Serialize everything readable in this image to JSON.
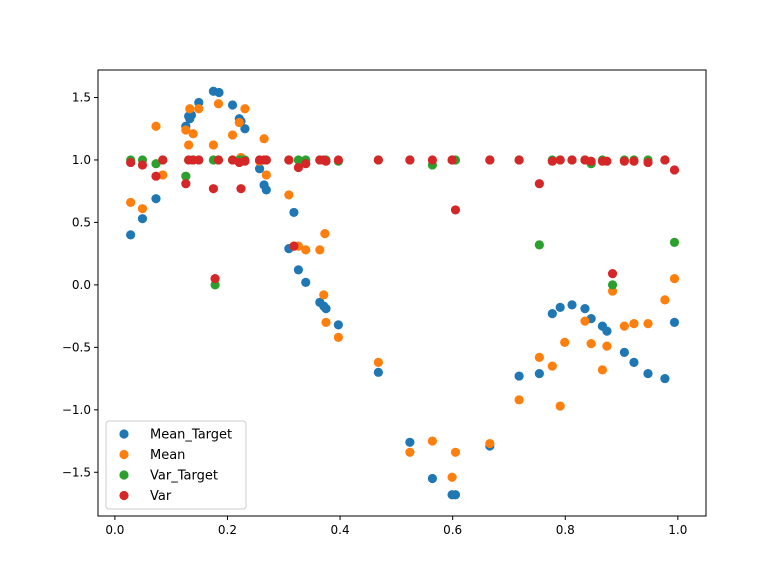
{
  "chart_data": {
    "type": "scatter",
    "title": "",
    "xlabel": "",
    "ylabel": "",
    "xlim": [
      -0.03,
      1.05
    ],
    "ylim": [
      -1.85,
      1.72
    ],
    "xticks": [
      0.0,
      0.2,
      0.4,
      0.6,
      0.8,
      1.0
    ],
    "xtick_labels": [
      "0.0",
      "0.2",
      "0.4",
      "0.6",
      "0.8",
      "1.0"
    ],
    "yticks": [
      1.5,
      1.0,
      0.5,
      0.0,
      -0.5,
      -1.0,
      -1.5
    ],
    "ytick_labels": [
      "1.5",
      "1.0",
      "0.5",
      "0.0",
      "−0.5",
      "−1.0",
      "−1.5"
    ],
    "grid": false,
    "legend_position": "lower-left",
    "series": [
      {
        "name": "Mean_Target",
        "color": "#1f77b4",
        "x": [
          0.028,
          0.049,
          0.073,
          0.126,
          0.131,
          0.133,
          0.136,
          0.149,
          0.175,
          0.185,
          0.209,
          0.221,
          0.224,
          0.231,
          0.257,
          0.265,
          0.269,
          0.309,
          0.318,
          0.326,
          0.339,
          0.364,
          0.371,
          0.375,
          0.397,
          0.468,
          0.524,
          0.564,
          0.599,
          0.605,
          0.666,
          0.718,
          0.754,
          0.777,
          0.791,
          0.812,
          0.835,
          0.846,
          0.866,
          0.874,
          0.905,
          0.922,
          0.947,
          0.977,
          0.994
        ],
        "y": [
          0.4,
          0.53,
          0.69,
          1.27,
          1.35,
          1.33,
          1.36,
          1.46,
          1.55,
          1.54,
          1.44,
          1.33,
          1.31,
          1.25,
          0.93,
          0.8,
          0.76,
          0.29,
          0.58,
          0.12,
          0.02,
          -0.14,
          -0.17,
          -0.19,
          -0.32,
          -0.7,
          -1.26,
          -1.55,
          -1.68,
          -1.68,
          -1.29,
          -0.73,
          -0.71,
          -0.23,
          -0.18,
          -0.16,
          -0.19,
          -0.27,
          -0.33,
          -0.37,
          -0.54,
          -0.62,
          -0.71,
          -0.75,
          -0.3
        ]
      },
      {
        "name": "Mean",
        "color": "#ff7f0e",
        "x": [
          0.028,
          0.049,
          0.073,
          0.085,
          0.126,
          0.131,
          0.133,
          0.139,
          0.149,
          0.175,
          0.184,
          0.209,
          0.221,
          0.224,
          0.231,
          0.257,
          0.265,
          0.269,
          0.309,
          0.318,
          0.326,
          0.339,
          0.364,
          0.371,
          0.373,
          0.375,
          0.397,
          0.468,
          0.524,
          0.564,
          0.599,
          0.605,
          0.666,
          0.718,
          0.754,
          0.777,
          0.791,
          0.799,
          0.835,
          0.846,
          0.866,
          0.874,
          0.884,
          0.905,
          0.922,
          0.947,
          0.977,
          0.994
        ],
        "y": [
          0.66,
          0.61,
          1.27,
          0.88,
          1.24,
          1.12,
          1.41,
          1.21,
          1.41,
          1.12,
          1.45,
          1.2,
          1.3,
          1.02,
          1.41,
          0.99,
          1.17,
          0.88,
          0.72,
          0.31,
          0.31,
          0.28,
          0.28,
          -0.08,
          0.41,
          -0.3,
          -0.42,
          -0.62,
          -1.34,
          -1.25,
          -1.54,
          -1.34,
          -1.27,
          -0.92,
          -0.58,
          -0.65,
          -0.97,
          -0.46,
          -0.29,
          -0.47,
          -0.68,
          -0.49,
          -0.05,
          -0.33,
          -0.31,
          -0.31,
          -0.12,
          0.05
        ]
      },
      {
        "name": "Var_Target",
        "color": "#2ca02c",
        "x": [
          0.028,
          0.049,
          0.073,
          0.085,
          0.126,
          0.131,
          0.139,
          0.149,
          0.175,
          0.178,
          0.184,
          0.209,
          0.221,
          0.224,
          0.231,
          0.257,
          0.269,
          0.309,
          0.326,
          0.339,
          0.364,
          0.375,
          0.397,
          0.468,
          0.524,
          0.564,
          0.599,
          0.605,
          0.666,
          0.718,
          0.754,
          0.777,
          0.791,
          0.812,
          0.835,
          0.846,
          0.866,
          0.884,
          0.905,
          0.922,
          0.947,
          0.977,
          0.994
        ],
        "y": [
          1.0,
          1.0,
          0.97,
          1.0,
          0.87,
          1.0,
          1.0,
          1.0,
          1.0,
          0.0,
          1.0,
          1.0,
          1.0,
          1.0,
          1.0,
          1.0,
          1.0,
          1.0,
          1.0,
          1.0,
          1.0,
          1.0,
          0.99,
          1.0,
          1.0,
          0.96,
          1.0,
          1.0,
          1.0,
          1.0,
          0.32,
          1.0,
          1.0,
          1.0,
          1.0,
          0.97,
          1.0,
          0.0,
          1.0,
          1.0,
          1.0,
          1.0,
          0.34
        ]
      },
      {
        "name": "Var",
        "color": "#d62728",
        "x": [
          0.028,
          0.049,
          0.073,
          0.085,
          0.126,
          0.131,
          0.139,
          0.149,
          0.175,
          0.178,
          0.184,
          0.209,
          0.221,
          0.224,
          0.231,
          0.257,
          0.265,
          0.269,
          0.309,
          0.318,
          0.326,
          0.339,
          0.364,
          0.371,
          0.375,
          0.397,
          0.468,
          0.524,
          0.564,
          0.599,
          0.605,
          0.666,
          0.718,
          0.754,
          0.777,
          0.791,
          0.812,
          0.835,
          0.846,
          0.866,
          0.874,
          0.884,
          0.905,
          0.922,
          0.947,
          0.977,
          0.994
        ],
        "y": [
          0.98,
          0.96,
          0.87,
          1.0,
          0.81,
          1.0,
          1.0,
          1.0,
          0.77,
          0.05,
          1.0,
          1.0,
          0.98,
          0.77,
          0.99,
          1.0,
          1.0,
          1.0,
          1.0,
          0.31,
          0.94,
          0.97,
          1.0,
          1.0,
          0.99,
          1.0,
          1.0,
          1.0,
          1.0,
          1.0,
          0.6,
          1.0,
          1.0,
          0.81,
          0.99,
          1.0,
          1.0,
          1.0,
          0.99,
          0.99,
          0.99,
          0.09,
          0.99,
          0.99,
          0.98,
          1.0,
          0.92
        ]
      }
    ]
  }
}
